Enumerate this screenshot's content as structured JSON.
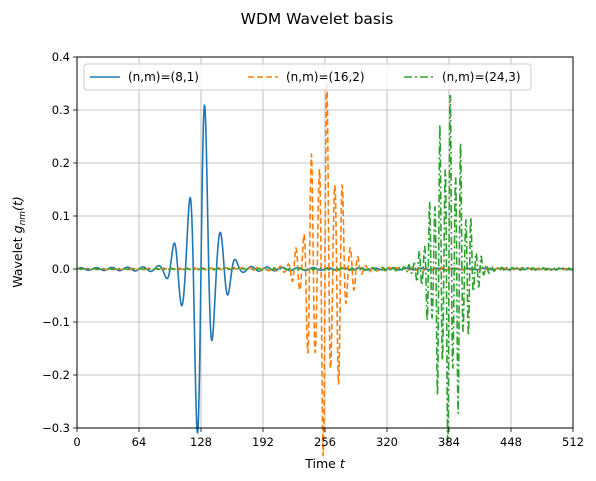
{
  "chart_data": {
    "type": "line",
    "title": "WDM Wavelet basis",
    "xlabel": "Time",
    "xlabel_var": "t",
    "ylabel": "Wavelet",
    "ylabel_var": "g",
    "ylabel_sub": "nm",
    "ylabel_arg": "(t)",
    "xlim": [
      0,
      512
    ],
    "ylim": [
      -0.3,
      0.4
    ],
    "xticks": [
      "0",
      "64",
      "128",
      "192",
      "256",
      "320",
      "384",
      "448",
      "512"
    ],
    "yticks": [
      "−0.3",
      "−0.2",
      "−0.1",
      "0.0",
      "0.1",
      "0.2",
      "0.3",
      "0.4"
    ],
    "grid": true,
    "legend_position": "top-left",
    "series": [
      {
        "name": "(n,m)=(8,1)",
        "color": "#1f77b4",
        "linestyle": "solid",
        "center": 128,
        "freq_cycles_per_sample": 0.0625,
        "peak_amplitude": 0.24,
        "envelope_width": 14,
        "tail_amplitude": 0.012
      },
      {
        "name": "(n,m)=(16,2)",
        "color": "#ff7f0e",
        "linestyle": "dashed",
        "center": 256,
        "freq_cycles_per_sample": 0.125,
        "peak_amplitude": 0.27,
        "envelope_width": 14,
        "tail_amplitude": 0.01
      },
      {
        "name": "(n,m)=(24,3)",
        "color": "#2ca02c",
        "linestyle": "dashdot",
        "center": 384,
        "freq_cycles_per_sample": 0.1875,
        "peak_amplitude": 0.26,
        "envelope_width": 14,
        "tail_amplitude": 0.009
      }
    ]
  }
}
